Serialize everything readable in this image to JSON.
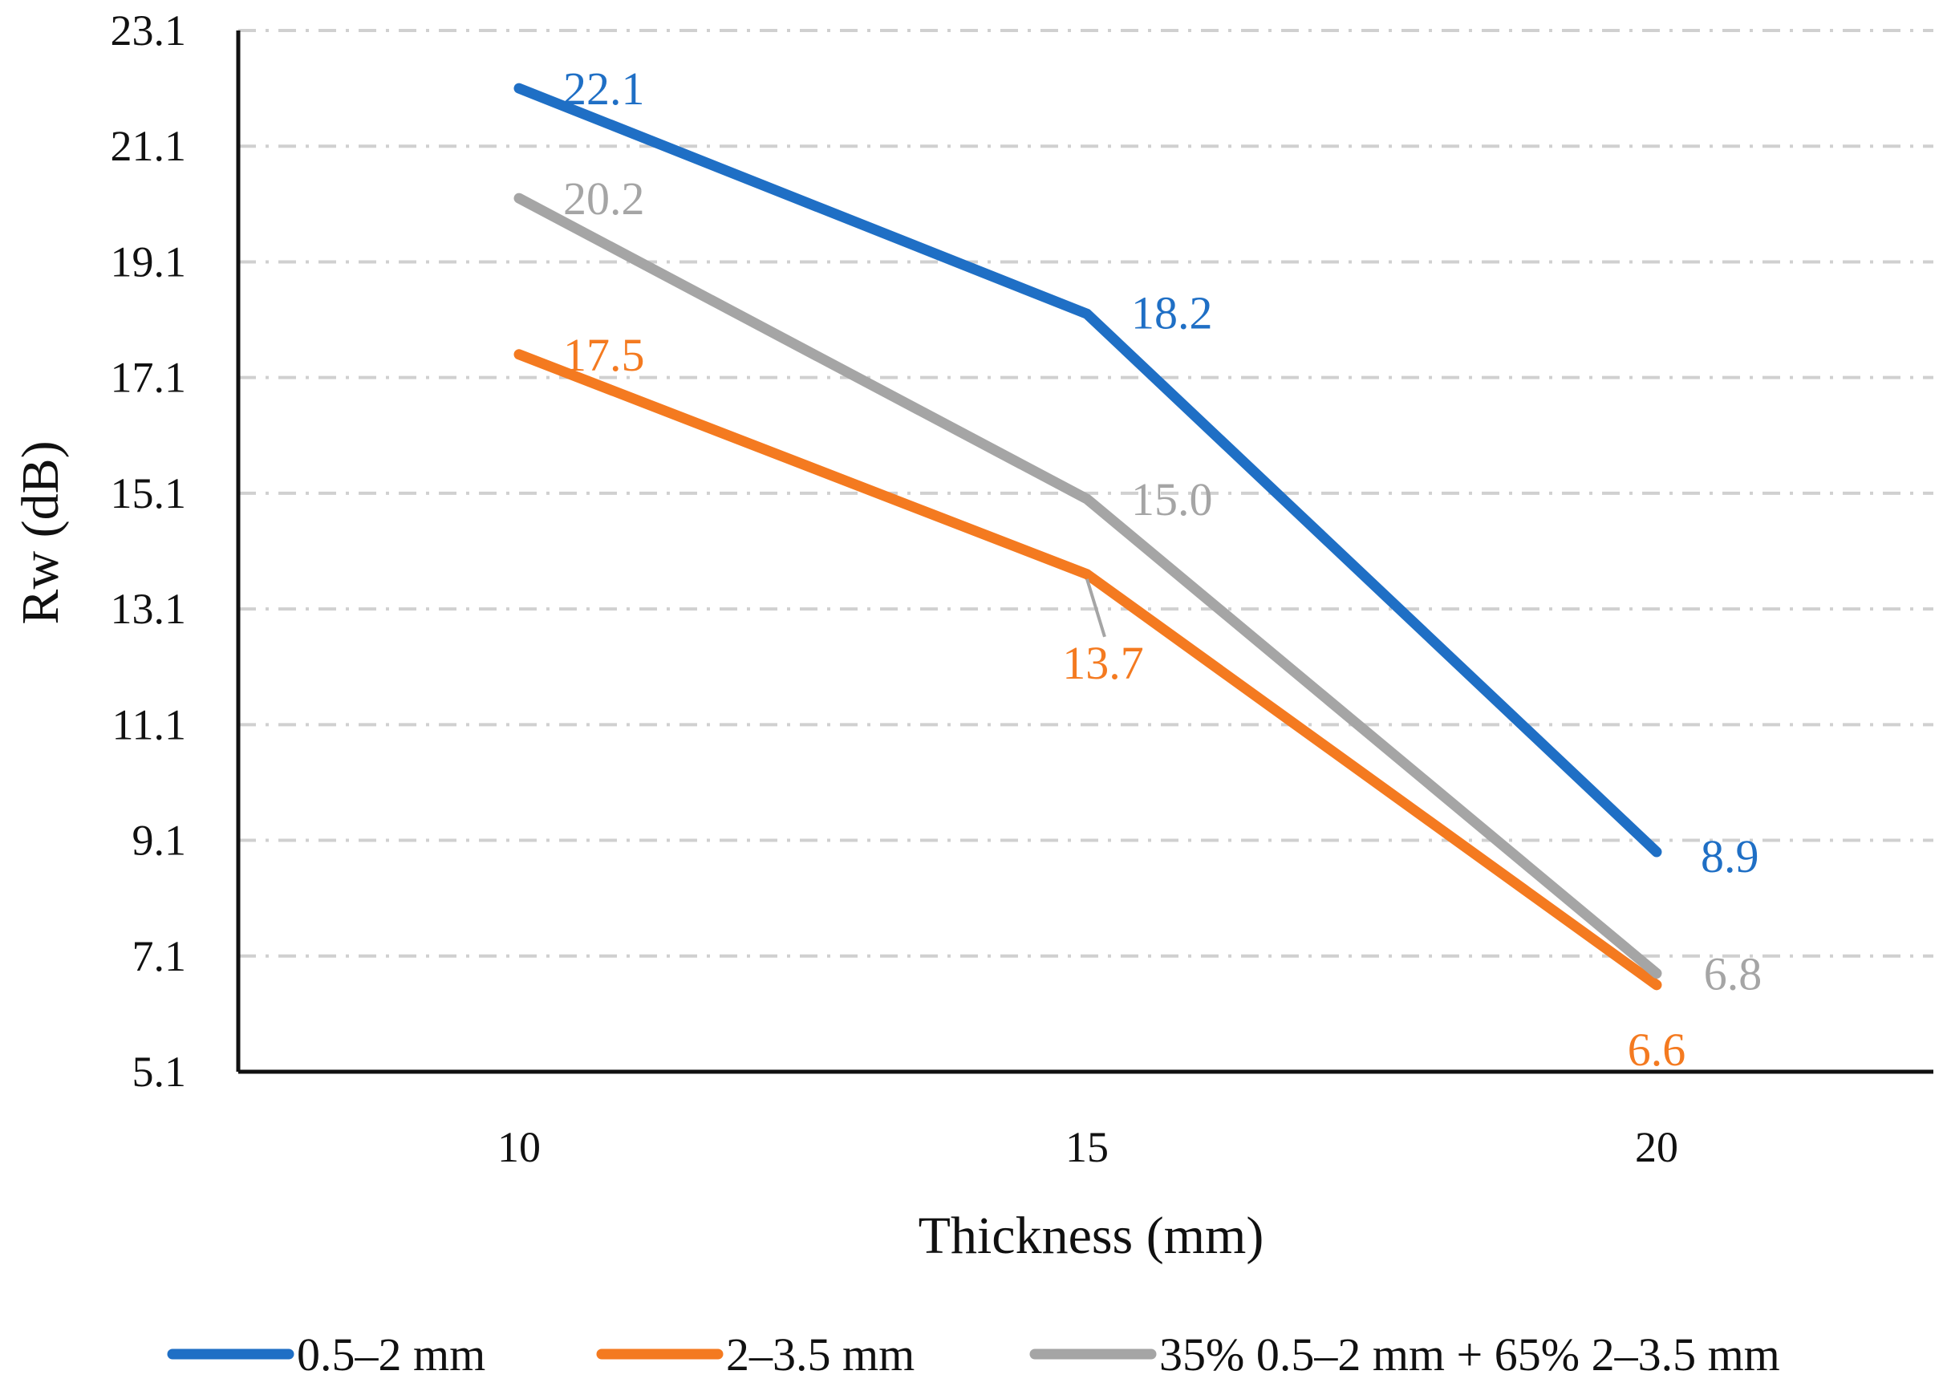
{
  "chart_data": {
    "type": "line",
    "title": "",
    "xlabel": "Thickness (mm)",
    "ylabel": "Rw (dB)",
    "x": [
      "10",
      "15",
      "20"
    ],
    "ylim": [
      5.1,
      23.1
    ],
    "yticks": [
      "5.1",
      "7.1",
      "9.1",
      "11.1",
      "13.1",
      "15.1",
      "17.1",
      "19.1",
      "21.1",
      "23.1"
    ],
    "grid": true,
    "legend_position": "bottom",
    "series": [
      {
        "name": "0.5–2 mm",
        "color": "#1f6fc5",
        "values": [
          22.1,
          18.2,
          8.9
        ],
        "labels": [
          "22.1",
          "18.2",
          "8.9"
        ]
      },
      {
        "name": "2–3.5 mm",
        "color": "#f47a20",
        "values": [
          17.5,
          13.7,
          6.6
        ],
        "labels": [
          "17.5",
          "13.7",
          "6.6"
        ]
      },
      {
        "name": "35% 0.5–2 mm + 65% 2–3.5 mm",
        "color": "#a5a5a5",
        "values": [
          20.2,
          15.0,
          6.8
        ],
        "labels": [
          "20.2",
          "15.0",
          "6.8"
        ]
      }
    ]
  }
}
